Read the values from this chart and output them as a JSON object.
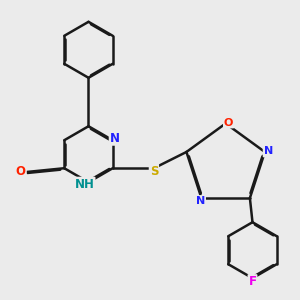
{
  "background_color": "#ebebeb",
  "bond_color": "#1a1a1a",
  "bond_width": 1.8,
  "atom_colors": {
    "N": "#2222ff",
    "O": "#ff2200",
    "S": "#ccaa00",
    "F": "#ee00ee",
    "H_label": "#009090"
  },
  "font_size": 8.5,
  "fig_size": [
    3.0,
    3.0
  ],
  "dpi": 100
}
